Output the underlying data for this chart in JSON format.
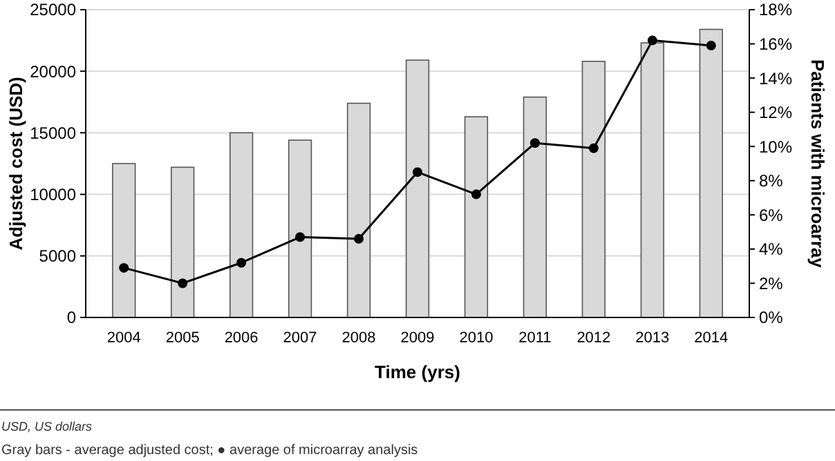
{
  "chart_data": {
    "type": "bar",
    "xlabel": "Time (yrs)",
    "ylabel": "Adjusted cost (USD)",
    "y2label": "Patients with microarray",
    "categories": [
      "2004",
      "2005",
      "2006",
      "2007",
      "2008",
      "2009",
      "2010",
      "2011",
      "2012",
      "2013",
      "2014"
    ],
    "series": [
      {
        "color": "#d9d9d9",
        "values": [
          12500,
          12200,
          15000,
          14400,
          17400,
          20900,
          16300,
          17900,
          20800,
          22300,
          23400
        ]
      },
      {
        "type": "line",
        "axis": "y2",
        "color": "#000000",
        "marker": "circle",
        "values": [
          2.9,
          2.0,
          3.2,
          4.7,
          4.6,
          8.5,
          7.2,
          10.2,
          9.9,
          16.2,
          15.9
        ]
      }
    ],
    "ylim": [
      0,
      25000
    ],
    "yticks": [
      0,
      5000,
      10000,
      15000,
      20000,
      25000
    ],
    "y2lim": [
      0,
      18
    ],
    "y2ticks": [
      {
        "value": 0,
        "label": "0%"
      },
      {
        "value": 2,
        "label": "2%"
      },
      {
        "value": 4,
        "label": "4%"
      },
      {
        "value": 6,
        "label": "6%"
      },
      {
        "value": 8,
        "label": "8%"
      },
      {
        "value": 10,
        "label": "10%"
      },
      {
        "value": 12,
        "label": "12%"
      },
      {
        "value": 14,
        "label": "14%"
      },
      {
        "value": 16,
        "label": "16%"
      },
      {
        "value": 18,
        "label": "18%"
      }
    ],
    "grid": "y",
    "annotations": [
      "USD, US dollars",
      "Gray bars - average adjusted cost; ● average of microarray analysis"
    ]
  }
}
